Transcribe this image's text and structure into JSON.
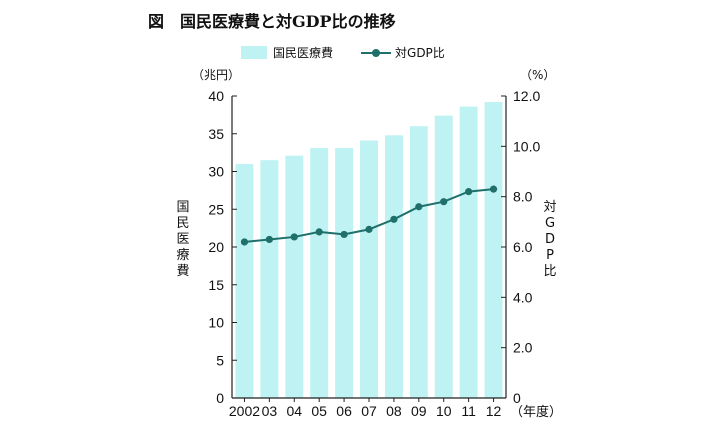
{
  "title": "図　国民医療費と対GDP比の推移",
  "left_unit": "（兆円）",
  "right_unit": "（%）",
  "x_unit": "（年度）",
  "colors": {
    "bar": "#bff3f3",
    "line": "#1f6f6b",
    "axis": "#222222"
  },
  "chart_data": {
    "type": "bar",
    "categories": [
      "2002",
      "03",
      "04",
      "05",
      "06",
      "07",
      "08",
      "09",
      "10",
      "11",
      "12"
    ],
    "series": [
      {
        "name": "国民医療費",
        "type": "bar",
        "axis": "left",
        "values": [
          31.0,
          31.5,
          32.1,
          33.1,
          33.1,
          34.1,
          34.8,
          36.0,
          37.4,
          38.6,
          39.2
        ]
      },
      {
        "name": "対GDP比",
        "type": "line",
        "axis": "right",
        "values": [
          6.2,
          6.3,
          6.4,
          6.6,
          6.5,
          6.7,
          7.1,
          7.6,
          7.8,
          8.2,
          8.3
        ]
      }
    ],
    "ylabel_left": "国民医療費",
    "ylabel_right": "対GDP比",
    "ylim_left": [
      0,
      40
    ],
    "ylim_right": [
      0,
      12
    ],
    "yticks_left": [
      "0",
      "5",
      "10",
      "15",
      "20",
      "25",
      "30",
      "35",
      "40"
    ],
    "yticks_right": [
      "0",
      "2.0",
      "4.0",
      "6.0",
      "8.0",
      "10.0",
      "12.0"
    ],
    "grid": false,
    "legend_position": "top"
  }
}
